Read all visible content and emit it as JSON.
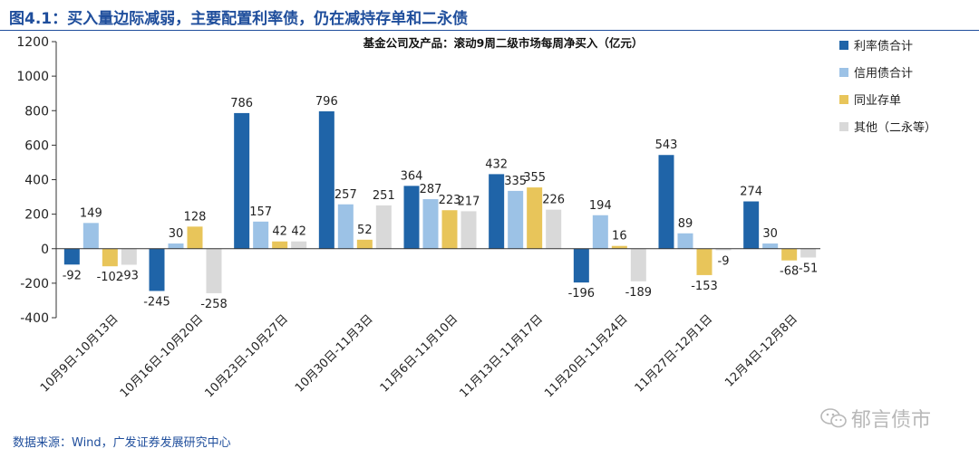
{
  "header": {
    "figure_title": "图4.1：买入量边际减弱，主要配置利率债，仍在减持存单和二永债"
  },
  "footer": {
    "source": "数据来源：Wind，广发证券发展研究中心",
    "watermark": "郁言债市"
  },
  "colors": {
    "series": [
      "#1f64a8",
      "#9cc2e6",
      "#e8c55a",
      "#d9d9d9"
    ],
    "title": "#1f4e9c"
  },
  "icons": {
    "watermark": "wechat-icon"
  },
  "chart_data": {
    "type": "bar",
    "title": "基金公司及产品：滚动9周二级市场每周净买入（亿元）",
    "xlabel": "",
    "ylabel": "",
    "ylim": [
      -400,
      1200
    ],
    "yticks": [
      -400,
      -200,
      0,
      200,
      400,
      600,
      800,
      1000,
      1200
    ],
    "grid": false,
    "legend_position": "top-right",
    "categories": [
      "10月9日-10月13日",
      "10月16日-10月20日",
      "10月23日-10月27日",
      "10月30日-11月3日",
      "11月6日-11月10日",
      "11月13日-11月17日",
      "11月20日-11月24日",
      "11月27日-12月1日",
      "12月4日-12月8日"
    ],
    "series": [
      {
        "name": "利率债合计",
        "values": [
          -92,
          -245,
          786,
          796,
          364,
          432,
          -196,
          543,
          274
        ]
      },
      {
        "name": "信用债合计",
        "values": [
          149,
          30,
          157,
          257,
          287,
          335,
          194,
          89,
          30
        ]
      },
      {
        "name": "同业存单",
        "values": [
          -102,
          128,
          42,
          52,
          223,
          355,
          16,
          -153,
          -68
        ]
      },
      {
        "name": "其他（二永等）",
        "values": [
          -93,
          -258,
          42,
          251,
          217,
          226,
          -189,
          -9,
          -51
        ]
      }
    ]
  }
}
